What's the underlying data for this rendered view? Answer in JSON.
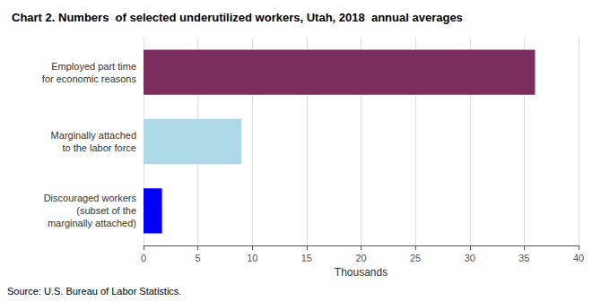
{
  "chart_data": {
    "type": "bar",
    "orientation": "horizontal",
    "title": "Chart 2. Numbers  of selected underutilized workers, Utah, 2018  annual averages",
    "categories": [
      "Discouraged workers\n(subset of the\nmarginally attached)",
      "Marginally attached\nto the labor force",
      "Employed part time\nfor economic reasons"
    ],
    "values": [
      1.7,
      9.0,
      36.0
    ],
    "colors": [
      "#0000FF",
      "#ADD8E6",
      "#7B2D5E"
    ],
    "xlabel": "Thousands",
    "xlim": [
      0,
      40
    ],
    "xticks": [
      0,
      5,
      10,
      15,
      20,
      25,
      30,
      35,
      40
    ],
    "grid": true,
    "annotations": [
      "Source: U.S. Bureau of Labor Statistics."
    ]
  }
}
